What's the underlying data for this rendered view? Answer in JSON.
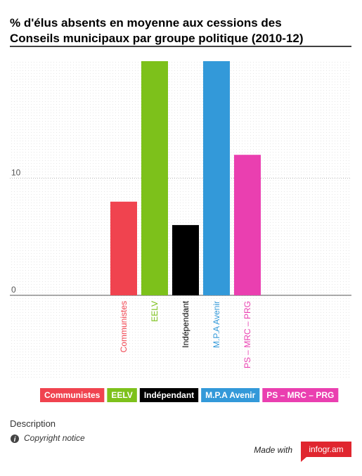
{
  "chart_data": {
    "type": "bar",
    "title": [
      "% d'élus absents en moyenne aux cessions des",
      "Conseils municipaux par groupe politique (2010-12)"
    ],
    "categories": [
      "Communistes",
      "EELV",
      "Indépendant",
      "M.P.A Avenir",
      "PS – MRC – PRG"
    ],
    "values": [
      8,
      20,
      6,
      20,
      12
    ],
    "colors": [
      "#f0434f",
      "#7dc11b",
      "#000000",
      "#3399d9",
      "#ea3fb0"
    ],
    "ylim": [
      0,
      20
    ],
    "yticks": [
      0,
      10
    ],
    "grid": true,
    "legend": "bottom"
  },
  "footer": {
    "description": "Description",
    "copyright": "Copyright notice",
    "made_with": "Made with",
    "brand": "infogr.am"
  }
}
